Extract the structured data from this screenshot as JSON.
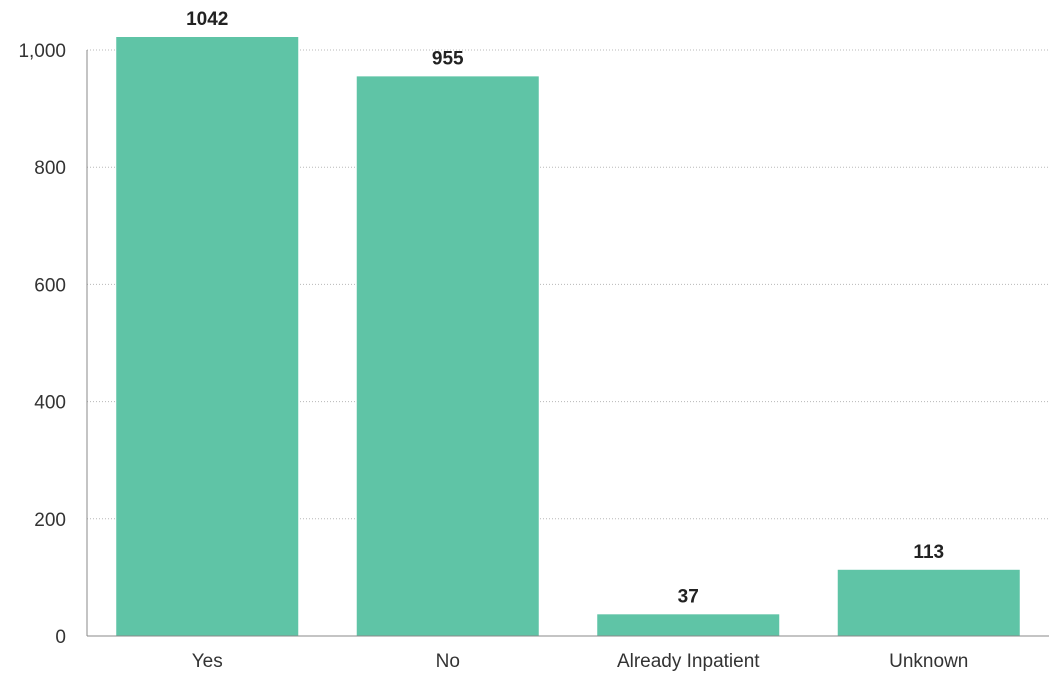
{
  "chart_data": {
    "type": "bar",
    "categories": [
      "Yes",
      "No",
      "Already Inpatient",
      "Unknown"
    ],
    "values": [
      1042,
      955,
      37,
      113
    ],
    "data_labels": [
      "1042",
      "955",
      "37",
      "113"
    ],
    "title": "",
    "xlabel": "",
    "ylabel": "",
    "ylim": [
      0,
      1000
    ],
    "yticks": [
      0,
      200,
      400,
      600,
      800,
      1000
    ],
    "ytick_labels": [
      "0",
      "200",
      "400",
      "600",
      "800",
      "1,000"
    ],
    "grid": true,
    "legend": "none",
    "bar_color": "#5fc4a6"
  }
}
